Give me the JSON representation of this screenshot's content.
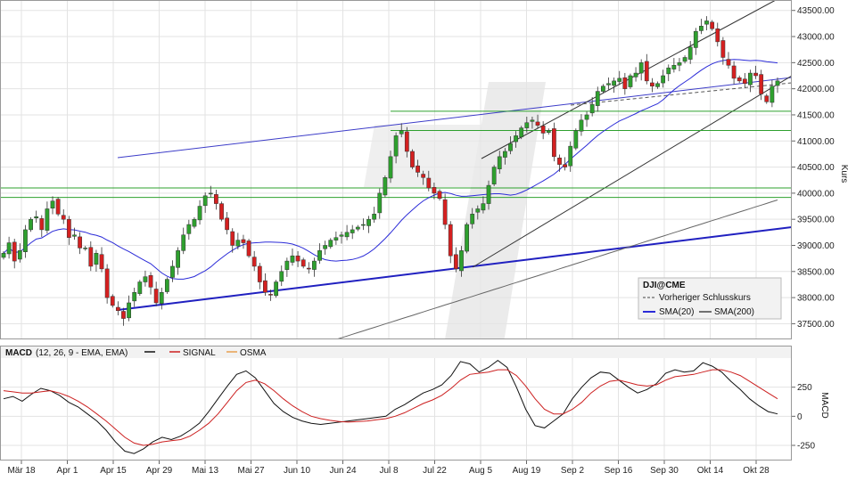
{
  "chart_data": [
    {
      "type": "candlestick",
      "ylabel": "Kurs",
      "ylim": [
        37200,
        43700
      ],
      "y_ticks": [
        37500,
        38000,
        38500,
        39000,
        39500,
        40000,
        40500,
        41000,
        41500,
        42000,
        42500,
        43000,
        43500
      ],
      "y_tick_labels": [
        "37500.00",
        "38000.00",
        "38500.00",
        "39000.00",
        "39500.00",
        "40000.00",
        "40500.00",
        "41000.00",
        "41500.00",
        "42000.00",
        "42500.00",
        "43000.00",
        "43500.00"
      ],
      "x_tick_labels": [
        "Mär 18",
        "Apr 1",
        "Apr 15",
        "Apr 29",
        "Mai 13",
        "Mai 27",
        "Jun 10",
        "Jun 24",
        "Jul 8",
        "Jul 22",
        "Aug 5",
        "Aug 19",
        "Sep 2",
        "Sep 16",
        "Sep 30",
        "Okt 14",
        "Okt 28"
      ],
      "closes": [
        38850,
        39050,
        38700,
        38900,
        39300,
        39500,
        39550,
        39300,
        39700,
        39850,
        39600,
        39500,
        39150,
        39200,
        38950,
        38950,
        38600,
        38850,
        38550,
        38000,
        37850,
        37750,
        37600,
        37900,
        38100,
        38300,
        38400,
        38200,
        37900,
        38100,
        38350,
        38600,
        38900,
        39200,
        39400,
        39500,
        39750,
        39950,
        40000,
        39800,
        39500,
        39300,
        39000,
        39100,
        39050,
        38800,
        38600,
        38300,
        38100,
        38050,
        38300,
        38500,
        38700,
        38800,
        38700,
        38600,
        38550,
        38700,
        38900,
        39000,
        39100,
        39150,
        39200,
        39250,
        39300,
        39350,
        39400,
        39500,
        39600,
        40000,
        40300,
        40700,
        41100,
        41200,
        40800,
        40500,
        40400,
        40300,
        40100,
        40000,
        39900,
        39400,
        38800,
        38550,
        38900,
        39400,
        39600,
        39700,
        39800,
        40150,
        40500,
        40700,
        40800,
        40950,
        41100,
        41250,
        41350,
        41400,
        41300,
        41150,
        41200,
        40700,
        40550,
        40500,
        40900,
        41200,
        41400,
        41500,
        41700,
        41950,
        42050,
        42100,
        42150,
        42200,
        42000,
        42250,
        42300,
        42500,
        42150,
        42050,
        42100,
        42250,
        42400,
        42450,
        42500,
        42600,
        42800,
        43100,
        43200,
        43300,
        43150,
        42900,
        42600,
        42450,
        42200,
        42150,
        42100,
        42300,
        42250,
        41900,
        41750,
        42050,
        42150
      ],
      "series": [
        {
          "name": "Vorheriger Schlusskurs",
          "type": "line"
        },
        {
          "name": "SMA(20)",
          "type": "line",
          "color": "#2b2bd8"
        },
        {
          "name": "SMA(200)",
          "type": "line",
          "color": "#555555"
        }
      ],
      "horizontal_levels": [
        41570,
        41200,
        40100,
        39920
      ],
      "legend": {
        "instrument": "DJI@CME",
        "placement": "bottom-right"
      }
    },
    {
      "type": "line",
      "ylabel": "MACD",
      "ylim": [
        -380,
        500
      ],
      "y_ticks": [
        -250,
        0,
        250
      ],
      "y_tick_labels": [
        "-250",
        "0",
        "250"
      ],
      "header": {
        "name": "MACD",
        "params": "(12, 26, 9 - EMA, EMA)",
        "signal": "SIGNAL",
        "osma": "OSMA"
      },
      "series": [
        {
          "name": "MACD",
          "color": "#111111",
          "values": [
            150,
            170,
            130,
            190,
            240,
            220,
            180,
            120,
            80,
            20,
            -40,
            -120,
            -220,
            -300,
            -320,
            -280,
            -220,
            -180,
            -200,
            -170,
            -120,
            -60,
            40,
            150,
            260,
            360,
            390,
            330,
            220,
            110,
            40,
            -10,
            -40,
            -60,
            -70,
            -60,
            -50,
            -40,
            -30,
            -20,
            -10,
            0,
            60,
            100,
            150,
            200,
            230,
            270,
            350,
            470,
            450,
            380,
            420,
            480,
            420,
            250,
            60,
            -80,
            -100,
            -40,
            20,
            150,
            250,
            330,
            380,
            370,
            310,
            250,
            200,
            230,
            280,
            370,
            400,
            380,
            390,
            460,
            430,
            380,
            300,
            230,
            150,
            90,
            40,
            20
          ]
        },
        {
          "name": "SIGNAL",
          "color": "#cc1f1f",
          "values": [
            220,
            210,
            200,
            200,
            210,
            220,
            200,
            170,
            130,
            80,
            20,
            -40,
            -110,
            -180,
            -230,
            -250,
            -240,
            -220,
            -210,
            -200,
            -170,
            -120,
            -60,
            20,
            120,
            220,
            290,
            310,
            280,
            220,
            150,
            90,
            40,
            0,
            -20,
            -35,
            -45,
            -50,
            -45,
            -40,
            -30,
            -20,
            0,
            30,
            70,
            110,
            140,
            180,
            240,
            310,
            360,
            370,
            380,
            400,
            400,
            350,
            260,
            150,
            60,
            20,
            20,
            60,
            120,
            200,
            260,
            300,
            310,
            290,
            270,
            260,
            270,
            310,
            340,
            350,
            360,
            380,
            400,
            400,
            380,
            350,
            300,
            250,
            200,
            150
          ]
        }
      ]
    }
  ]
}
